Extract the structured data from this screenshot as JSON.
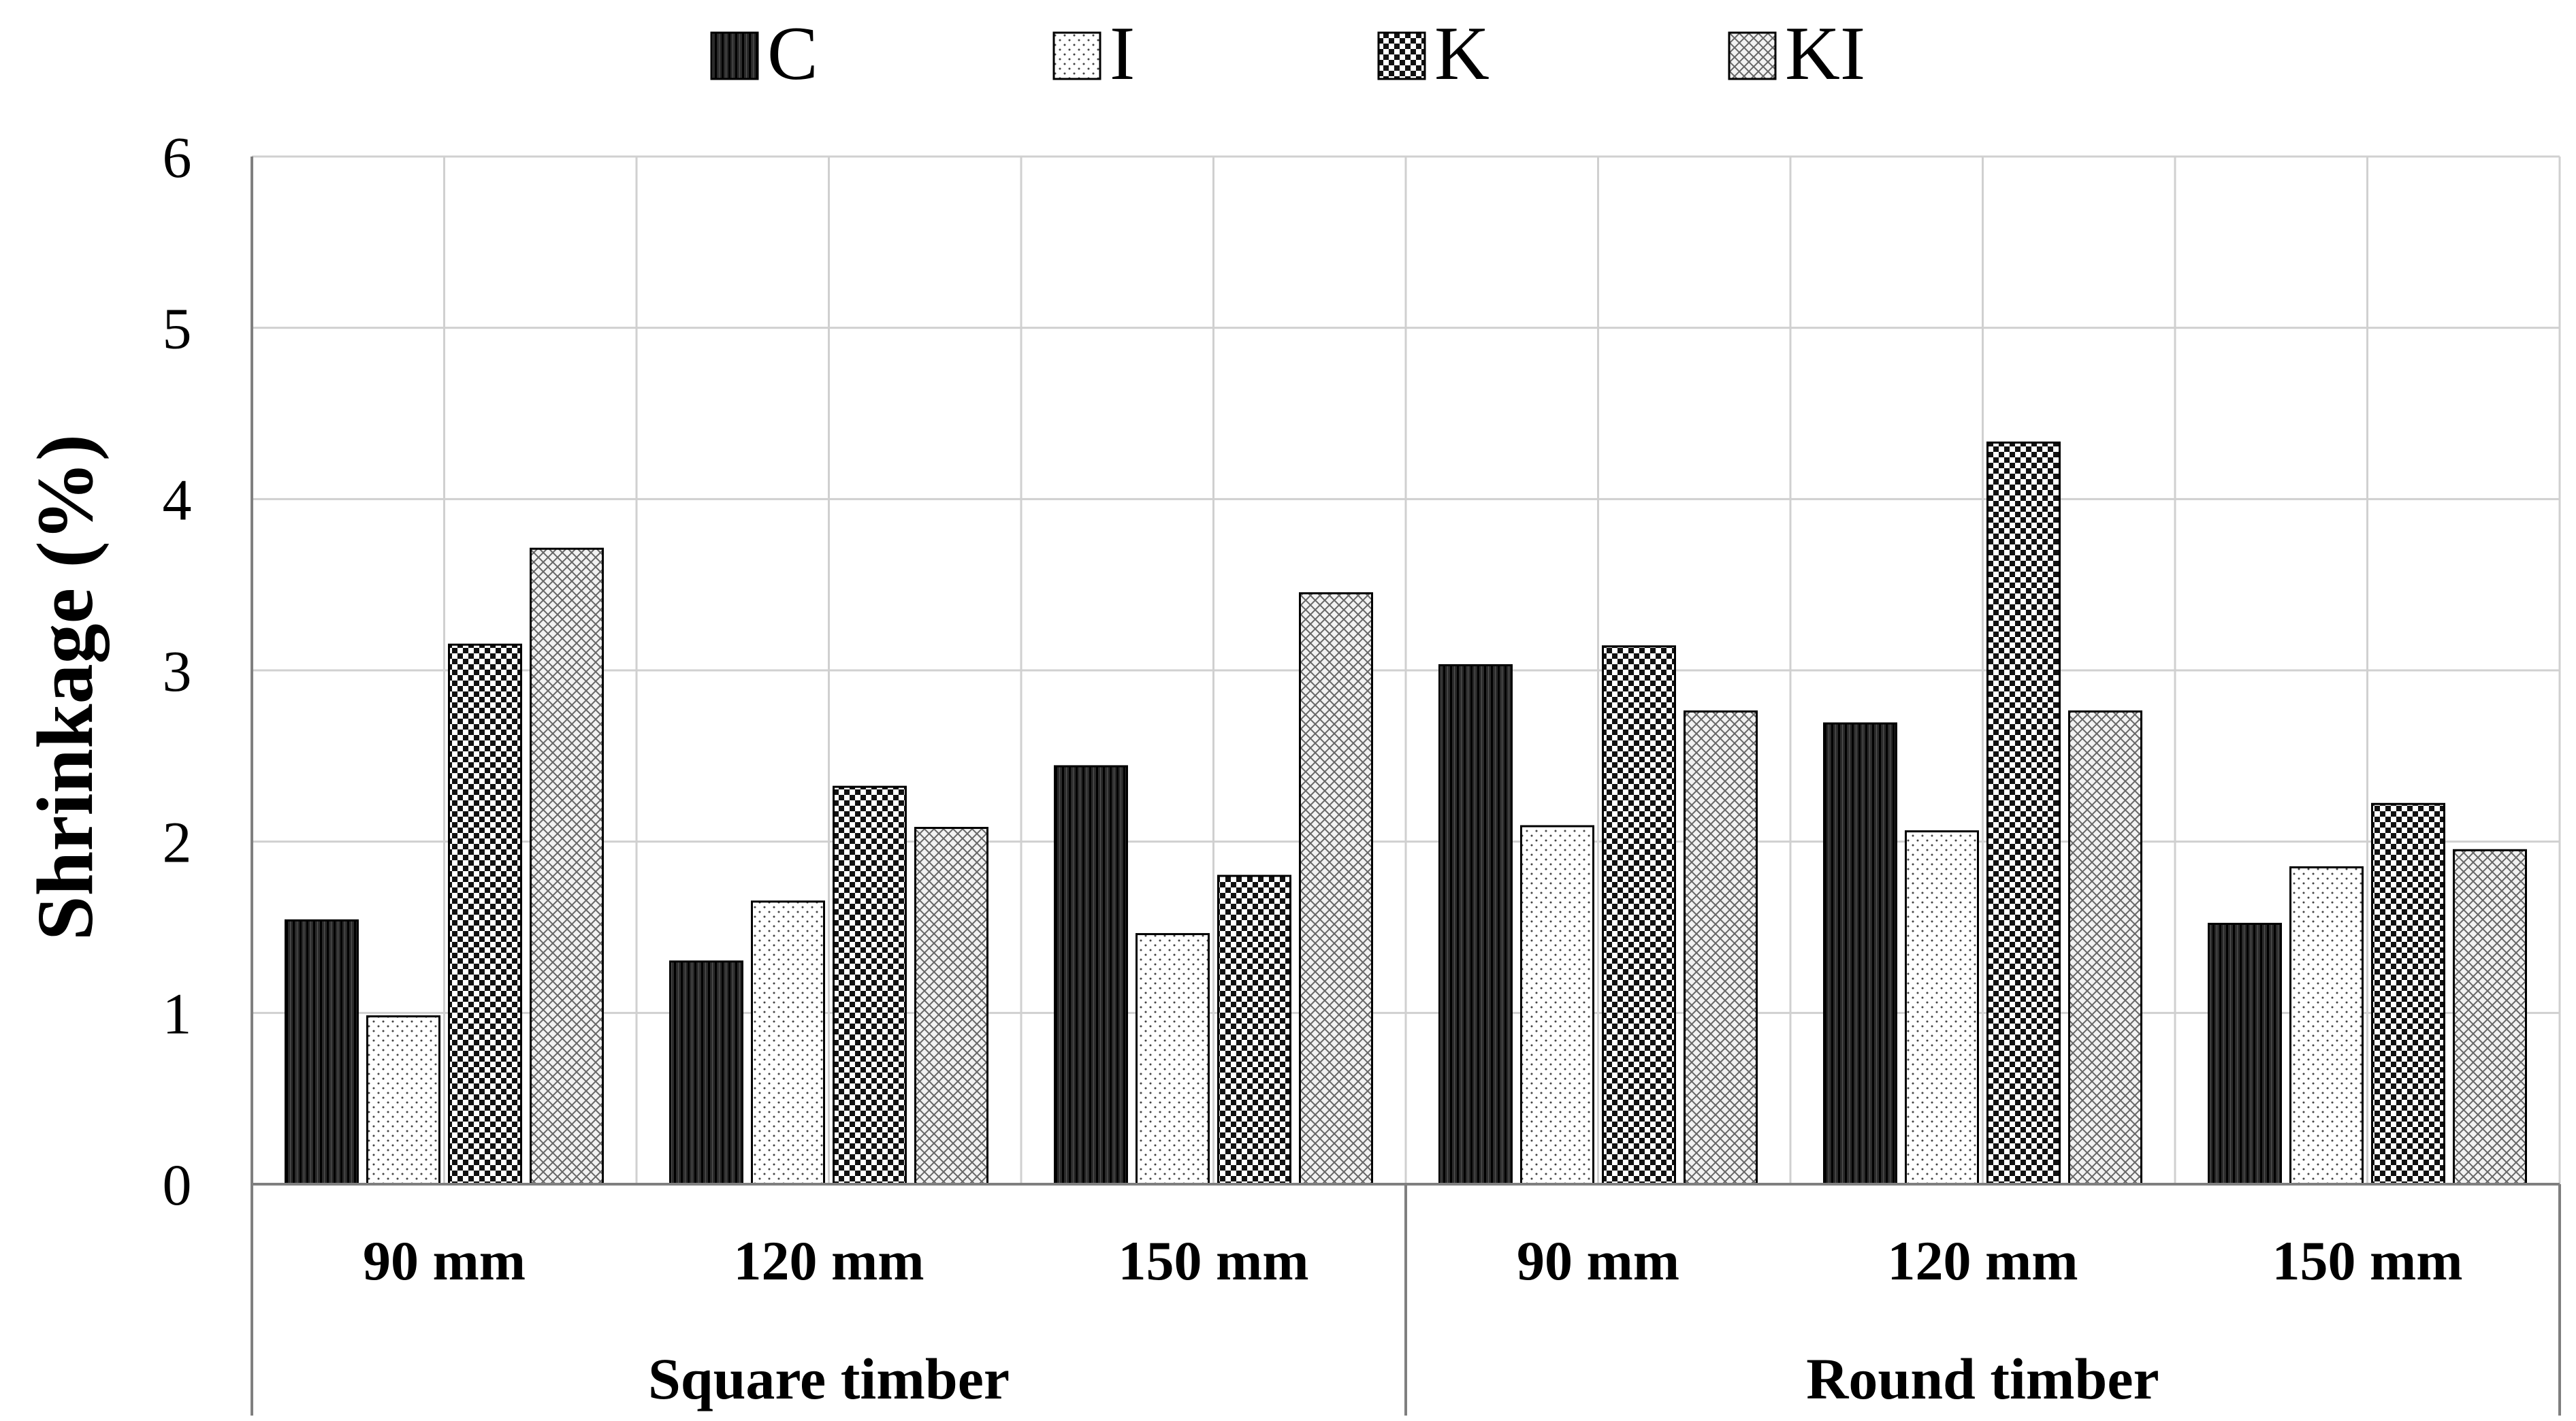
{
  "chart_data": {
    "type": "bar",
    "ylabel": "Shrinkage (%)",
    "ylim": [
      0,
      6
    ],
    "yticks": [
      "0",
      "1",
      "2",
      "3",
      "4",
      "5",
      "6"
    ],
    "grid": true,
    "legend_position": "top",
    "groups": [
      {
        "label": "Square timber",
        "categories": [
          "90 mm",
          "120 mm",
          "150 mm"
        ]
      },
      {
        "label": "Round timber",
        "categories": [
          "90 mm",
          "120 mm",
          "150 mm"
        ]
      }
    ],
    "series": [
      {
        "name": "C",
        "pattern": "vertical-hatch-dark",
        "values": [
          1.54,
          1.3,
          2.44,
          3.03,
          2.69,
          1.52
        ]
      },
      {
        "name": "I",
        "pattern": "dots-light",
        "values": [
          0.98,
          1.65,
          1.46,
          2.09,
          2.06,
          1.85
        ]
      },
      {
        "name": "K",
        "pattern": "checker-dark",
        "values": [
          3.15,
          2.32,
          1.8,
          3.14,
          4.33,
          2.22
        ]
      },
      {
        "name": "KI",
        "pattern": "crosshatch-light",
        "values": [
          3.71,
          2.08,
          3.45,
          2.76,
          2.76,
          1.95
        ]
      }
    ]
  }
}
